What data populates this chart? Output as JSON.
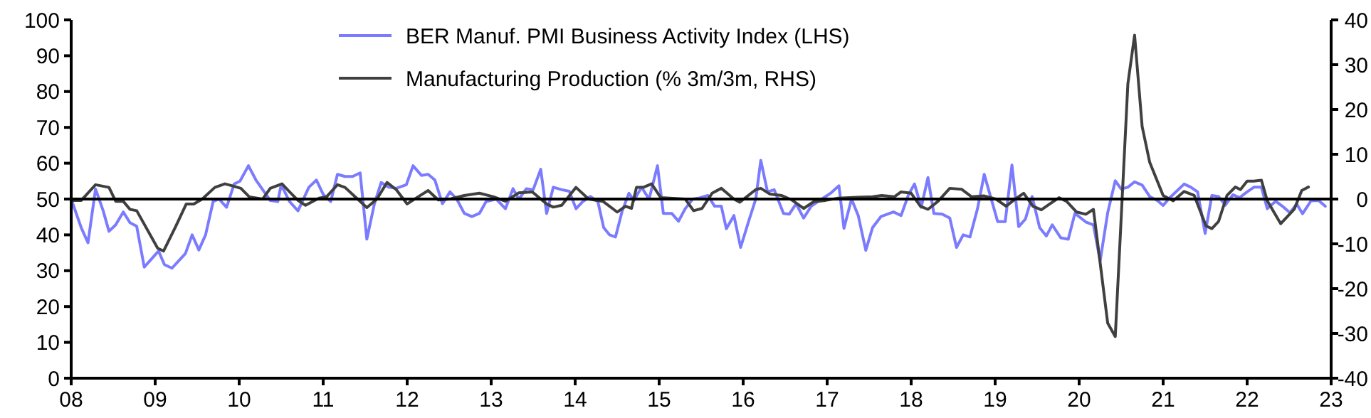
{
  "chart_data": {
    "type": "line",
    "legend": "top",
    "grid": false,
    "xlim": [
      2008,
      2023
    ],
    "xticks": [
      {
        "value": 2008,
        "label": "08"
      },
      {
        "value": 2009,
        "label": "09"
      },
      {
        "value": 2010,
        "label": "10"
      },
      {
        "value": 2011,
        "label": "11"
      },
      {
        "value": 2012,
        "label": "12"
      },
      {
        "value": 2013,
        "label": "13"
      },
      {
        "value": 2014,
        "label": "14"
      },
      {
        "value": 2015,
        "label": "15"
      },
      {
        "value": 2016,
        "label": "16"
      },
      {
        "value": 2017,
        "label": "17"
      },
      {
        "value": 2018,
        "label": "18"
      },
      {
        "value": 2019,
        "label": "19"
      },
      {
        "value": 2020,
        "label": "20"
      },
      {
        "value": 2021,
        "label": "21"
      },
      {
        "value": 2022,
        "label": "22"
      },
      {
        "value": 2023,
        "label": "23"
      }
    ],
    "ylim": [
      0,
      100
    ],
    "yticks": [
      0,
      10,
      20,
      30,
      40,
      50,
      60,
      70,
      80,
      90,
      100
    ],
    "y2lim": [
      -40,
      40
    ],
    "y2ticks": [
      -40,
      -30,
      -20,
      -10,
      0,
      10,
      20,
      30,
      40
    ],
    "ref_lines": [
      {
        "axis": "y2",
        "value": 0,
        "color": "#000000"
      }
    ],
    "series": [
      {
        "name": "BER Manuf. PMI Business Activity Index (LHS)",
        "color": "#7b7bff",
        "x": [
          2008.0,
          2008.12,
          2008.2,
          2008.29,
          2008.38,
          2008.45,
          2008.53,
          2008.62,
          2008.7,
          2008.78,
          2008.87,
          2009.04,
          2009.11,
          2009.2,
          2009.36,
          2009.44,
          2009.52,
          2009.6,
          2009.69,
          2009.76,
          2009.85,
          2009.94,
          2010.01,
          2010.11,
          2010.2,
          2010.28,
          2010.37,
          2010.46,
          2010.5,
          2010.6,
          2010.7,
          2010.83,
          2010.92,
          2011.0,
          2011.09,
          2011.17,
          2011.26,
          2011.35,
          2011.44,
          2011.52,
          2011.61,
          2011.69,
          2011.78,
          2011.87,
          2011.99,
          2012.07,
          2012.17,
          2012.25,
          2012.33,
          2012.42,
          2012.51,
          2012.59,
          2012.68,
          2012.77,
          2012.86,
          2012.94,
          2013.06,
          2013.17,
          2013.26,
          2013.33,
          2013.42,
          2013.5,
          2013.59,
          2013.66,
          2013.74,
          2013.84,
          2013.93,
          2014.01,
          2014.09,
          2014.18,
          2014.27,
          2014.34,
          2014.41,
          2014.48,
          2014.56,
          2014.64,
          2014.7,
          2014.79,
          2014.88,
          2014.98,
          2015.05,
          2015.15,
          2015.23,
          2015.31,
          2015.4,
          2015.48,
          2015.58,
          2015.66,
          2015.74,
          2015.8,
          2015.89,
          2015.97,
          2016.06,
          2016.15,
          2016.21,
          2016.29,
          2016.37,
          2016.48,
          2016.55,
          2016.63,
          2016.72,
          2016.81,
          2016.89,
          2017.04,
          2017.14,
          2017.2,
          2017.29,
          2017.37,
          2017.46,
          2017.54,
          2017.64,
          2017.79,
          2017.88,
          2017.97,
          2018.04,
          2018.12,
          2018.2,
          2018.27,
          2018.37,
          2018.46,
          2018.54,
          2018.62,
          2018.7,
          2018.79,
          2018.87,
          2018.95,
          2019.03,
          2019.12,
          2019.2,
          2019.28,
          2019.36,
          2019.44,
          2019.53,
          2019.61,
          2019.68,
          2019.78,
          2019.87,
          2019.95,
          2020.08,
          2020.17,
          2020.25,
          2020.34,
          2020.43,
          2020.5,
          2020.58,
          2020.66,
          2020.75,
          2020.84,
          2020.93,
          2021.0,
          2021.08,
          2021.25,
          2021.33,
          2021.41,
          2021.5,
          2021.58,
          2021.66,
          2021.74,
          2021.83,
          2021.91,
          2022.0,
          2022.08,
          2022.17,
          2022.24,
          2022.34,
          2022.42,
          2022.51,
          2022.59,
          2022.66,
          2022.76,
          2022.85,
          2022.93
        ],
        "values": [
          50,
          42,
          37.8,
          52.8,
          46.8,
          41,
          42.8,
          46.4,
          43.4,
          42.4,
          31,
          35.5,
          31.7,
          30.7,
          34.8,
          40,
          35.8,
          40,
          49.3,
          50,
          47.7,
          54.2,
          55,
          59.3,
          55.3,
          52.6,
          49.6,
          49.3,
          54,
          49.3,
          46.7,
          53.3,
          55.3,
          51.3,
          49.3,
          56.9,
          56.3,
          56.3,
          57.3,
          38.8,
          48.7,
          54.6,
          53.3,
          53,
          54,
          59.3,
          56.6,
          56.9,
          55.3,
          48.7,
          52,
          50,
          46,
          45.1,
          46,
          49.3,
          50,
          47.3,
          52.9,
          50,
          52.9,
          52.6,
          58.3,
          46,
          53.3,
          52.6,
          52.2,
          47.3,
          49.3,
          50.7,
          49.3,
          42,
          40,
          39.4,
          46.7,
          51.6,
          49.6,
          53.3,
          50,
          59.3,
          46,
          46,
          43.8,
          47.3,
          50,
          50.3,
          51,
          48,
          48,
          41.7,
          45.4,
          36.5,
          43.4,
          50,
          60.8,
          52,
          52.6,
          46,
          45.8,
          48.7,
          44.7,
          48,
          49.3,
          51.6,
          53.7,
          41.8,
          50,
          45.4,
          35.7,
          42,
          45.1,
          46.4,
          45.4,
          51.3,
          54.2,
          47.7,
          56,
          46,
          45.8,
          44.7,
          36.5,
          40,
          39.4,
          47.3,
          56.9,
          50.3,
          43.7,
          43.7,
          59.5,
          42.3,
          44.4,
          50.7,
          42,
          39.7,
          42.8,
          39.2,
          38.8,
          46,
          43.6,
          42.8,
          32.7,
          46.2,
          55.1,
          52.8,
          53.3,
          54.8,
          53.9,
          50.7,
          49.6,
          48.2,
          50.4,
          54.2,
          53.3,
          52,
          40.4,
          51,
          50.7,
          48.3,
          51.2,
          50.4,
          52,
          53.3,
          53.3,
          47.3,
          49.4,
          48,
          46.2,
          48.6,
          45.9,
          49.5,
          49.6,
          48
        ]
      },
      {
        "name": "Manufacturing Production (% 3m/3m, RHS)",
        "color": "#404040",
        "axis": "y2",
        "x": [
          2008.0,
          2008.12,
          2008.29,
          2008.45,
          2008.53,
          2008.62,
          2008.7,
          2008.78,
          2009.03,
          2009.1,
          2009.24,
          2009.37,
          2009.46,
          2009.56,
          2009.71,
          2009.83,
          2009.91,
          2010.02,
          2010.12,
          2010.28,
          2010.37,
          2010.51,
          2010.6,
          2010.7,
          2010.79,
          2010.95,
          2011.04,
          2011.17,
          2011.26,
          2011.41,
          2011.52,
          2011.64,
          2011.76,
          2011.87,
          2012.0,
          2012.13,
          2012.25,
          2012.37,
          2012.51,
          2012.68,
          2012.86,
          2013.03,
          2013.17,
          2013.33,
          2013.49,
          2013.66,
          2013.74,
          2013.84,
          2014.01,
          2014.16,
          2014.33,
          2014.5,
          2014.6,
          2014.67,
          2014.73,
          2014.81,
          2014.91,
          2015.02,
          2015.31,
          2015.41,
          2015.51,
          2015.63,
          2015.74,
          2015.89,
          2015.96,
          2016.15,
          2016.21,
          2016.32,
          2016.46,
          2016.58,
          2016.72,
          2016.84,
          2016.98,
          2017.13,
          2017.36,
          2017.54,
          2017.65,
          2017.8,
          2017.88,
          2018.0,
          2018.11,
          2018.2,
          2018.32,
          2018.46,
          2018.6,
          2018.72,
          2018.87,
          2019.01,
          2019.13,
          2019.24,
          2019.34,
          2019.45,
          2019.55,
          2019.65,
          2019.76,
          2019.85,
          2019.97,
          2020.08,
          2020.17,
          2020.34,
          2020.43,
          2020.58,
          2020.66,
          2020.75,
          2020.84,
          2021.0,
          2021.12,
          2021.25,
          2021.37,
          2021.51,
          2021.58,
          2021.66,
          2021.76,
          2021.86,
          2021.92,
          2022.0,
          2022.08,
          2022.17,
          2022.24,
          2022.4,
          2022.56,
          2022.65,
          2022.73
        ],
        "values": [
          -0.3,
          -0.3,
          3.2,
          2.6,
          -0.5,
          -0.5,
          -2.3,
          -2.6,
          -11,
          -11.6,
          -6.3,
          -1.1,
          -1.1,
          0,
          2.6,
          3.4,
          3,
          2.4,
          0.5,
          0,
          2.4,
          3.4,
          1.6,
          -0.3,
          -1.4,
          0.2,
          0.5,
          3.2,
          2.6,
          0,
          -1.9,
          0,
          3.7,
          2.1,
          -1.1,
          0.5,
          1.9,
          -0.2,
          0,
          0.8,
          1.3,
          0.5,
          -0.5,
          1.4,
          1.6,
          -1.1,
          -1.8,
          -1.4,
          2.6,
          0,
          -0.5,
          -2.9,
          -1.6,
          -2.1,
          2.6,
          2.6,
          3.4,
          0.3,
          0,
          -2.6,
          -2.1,
          1.3,
          2.4,
          0,
          -0.7,
          2.1,
          2.4,
          1.1,
          0.8,
          -0.2,
          -2.1,
          -0.6,
          -0.3,
          0.2,
          0.4,
          0.5,
          0.8,
          0.5,
          1.6,
          1.3,
          -1.6,
          -2.3,
          -0.5,
          2.4,
          2.2,
          0.5,
          0.7,
          0,
          -1.6,
          0,
          1.3,
          -1.6,
          -2.4,
          -1.1,
          0.3,
          -0.5,
          -2.9,
          -3.4,
          -2.3,
          -27.7,
          -30.7,
          25.7,
          36.6,
          16.2,
          8.2,
          0.8,
          -0.4,
          1.7,
          0.8,
          -6,
          -6.6,
          -5,
          0.8,
          2.7,
          2.1,
          4,
          4,
          4.2,
          -0.4,
          -5.5,
          -2.3,
          1.9,
          2.7
        ]
      }
    ]
  }
}
